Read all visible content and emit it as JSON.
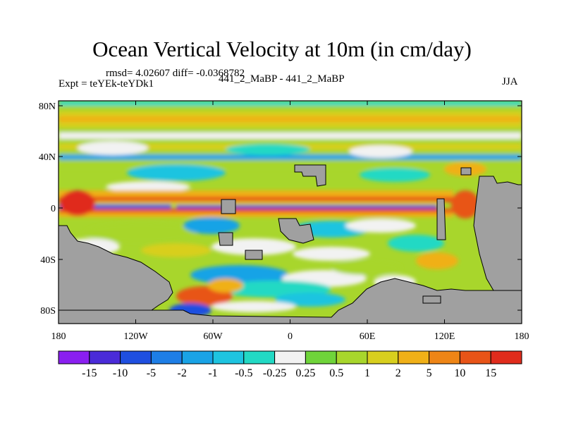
{
  "title": "Ocean Vertical Velocity at 10m (in cm/day)",
  "stats_line": "rmsd= 4.02607  diff= -0.0368782",
  "experiment_line": "Expt = teYEk-teYDk1",
  "model_line": "441_2_MaBP - 441_2_MaBP",
  "season": "JJA",
  "y_ticks": [
    "80N",
    "40N",
    "0",
    "40S",
    "80S"
  ],
  "x_ticks": [
    "180",
    "120W",
    "60W",
    "0",
    "60E",
    "120E",
    "180"
  ],
  "colorbar": {
    "labels": [
      "-15",
      "-10",
      "-5",
      "-2",
      "-1",
      "-0.5",
      "-0.25",
      "0.25",
      "0.5",
      "1",
      "2",
      "5",
      "10",
      "15"
    ],
    "colors": [
      "#8a1ff0",
      "#4a2bd8",
      "#1f4fe0",
      "#1e7ee6",
      "#19a3e6",
      "#1ec4e0",
      "#22d9c4",
      "#f2f2f2",
      "#6fd43a",
      "#a8d62c",
      "#d8cf1e",
      "#f0b018",
      "#ee8516",
      "#e85418",
      "#e02c1c"
    ]
  },
  "land_color": "#a0a0a0"
}
